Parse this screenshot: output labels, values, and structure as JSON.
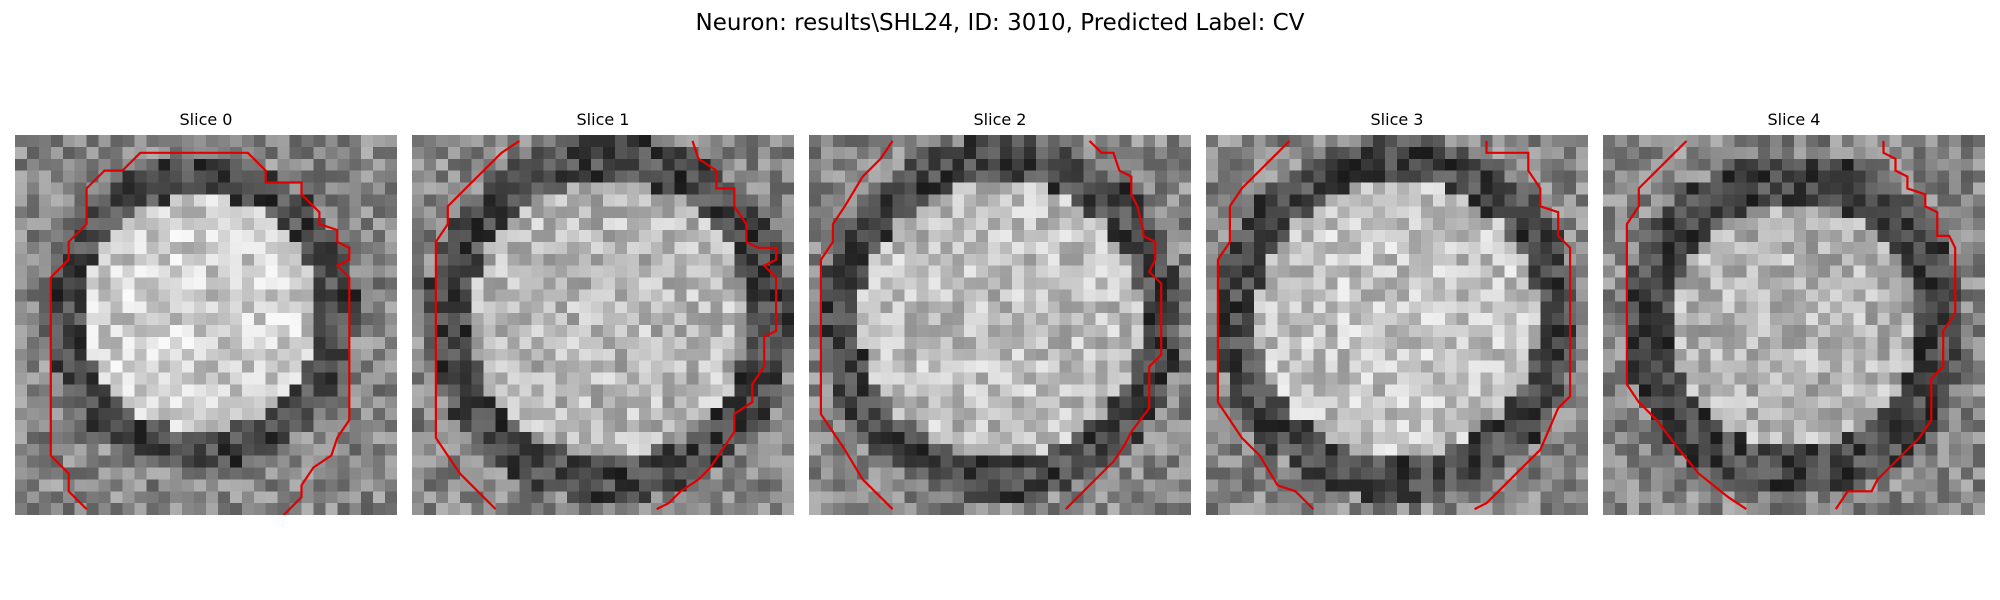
{
  "figure": {
    "title": "Neuron: results\\SHL24, ID: 3010, Predicted Label: CV"
  },
  "panels": [
    {
      "title": "Slice 0"
    },
    {
      "title": "Slice 1"
    },
    {
      "title": "Slice 2"
    },
    {
      "title": "Slice 3"
    },
    {
      "title": "Slice 4"
    }
  ],
  "colors": {
    "contour": "#e00000",
    "background": "#ffffff"
  }
}
